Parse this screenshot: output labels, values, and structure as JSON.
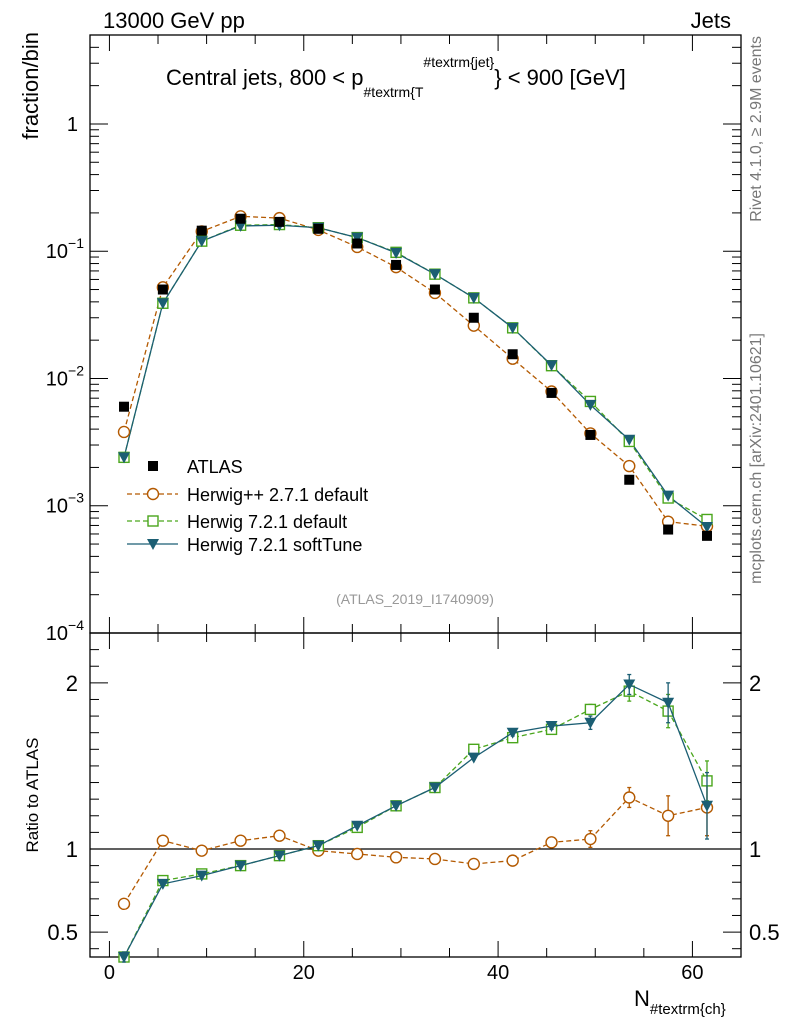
{
  "header": {
    "left": "13000 GeV pp",
    "right": "Jets"
  },
  "side_labels": {
    "rivet": "Rivet 4.1.0, ≥ 2.9M events",
    "mcplots": "mcplots.cern.ch [arXiv:2401.10621]"
  },
  "legend": [
    {
      "name": "ATLAS"
    },
    {
      "name": "Herwig++ 2.7.1 default"
    },
    {
      "name": "Herwig 7.2.1 default"
    },
    {
      "name": "Herwig 7.2.1 softTune"
    }
  ],
  "colors": {
    "atlas": "#000000",
    "herwigpp": "#b35900",
    "h721default": "#4aa61c",
    "h721soft": "#1b5e73",
    "watermark": "#999999"
  },
  "chart_data": [
    {
      "type": "scatter",
      "panel": "main",
      "title": "Central jets, 800 < p",
      "title_sub": "#textrm{T",
      "title_sup": "#textrm{jet}",
      "title_tail": "} < 900 [GeV]",
      "watermark": "(ATLAS_2019_I1740909)",
      "ylabel": "fraction/bin",
      "yscale": "log",
      "ylim": [
        0.0001,
        5
      ],
      "xlim": [
        -2,
        65
      ],
      "y_ticks": [
        {
          "value": 1,
          "label": "1"
        },
        {
          "value": 0.1,
          "label": "10",
          "exp": "−1"
        },
        {
          "value": 0.01,
          "label": "10",
          "exp": "−2"
        },
        {
          "value": 0.001,
          "label": "10",
          "exp": "−3"
        },
        {
          "value": 0.0001,
          "label": "10",
          "exp": "−4"
        }
      ],
      "x": [
        1.5,
        5.5,
        9.5,
        13.5,
        17.5,
        21.5,
        25.5,
        29.5,
        33.5,
        37.5,
        41.5,
        45.5,
        49.5,
        53.5,
        57.5,
        61.5
      ],
      "series": [
        {
          "name": "ATLAS",
          "values": [
            0.006,
            0.05,
            0.145,
            0.18,
            0.17,
            0.15,
            0.115,
            0.078,
            0.05,
            0.03,
            0.0155,
            0.0077,
            0.0036,
            0.0016,
            0.00065,
            0.00058
          ]
        },
        {
          "name": "Herwig++ 2.7.1 default",
          "values": [
            0.0038,
            0.052,
            0.143,
            0.188,
            0.182,
            0.147,
            0.108,
            0.075,
            0.047,
            0.026,
            0.0143,
            0.0079,
            0.0037,
            0.00205,
            0.00075,
            0.00069
          ]
        },
        {
          "name": "Herwig 7.2.1 default",
          "values": [
            0.0024,
            0.039,
            0.12,
            0.16,
            0.162,
            0.153,
            0.128,
            0.098,
            0.066,
            0.043,
            0.025,
            0.0126,
            0.0066,
            0.0032,
            0.00115,
            0.00078
          ]
        },
        {
          "name": "Herwig 7.2.1 softTune",
          "values": [
            0.0024,
            0.039,
            0.12,
            0.158,
            0.16,
            0.153,
            0.128,
            0.097,
            0.066,
            0.043,
            0.025,
            0.0127,
            0.0062,
            0.0033,
            0.0012,
            0.00068
          ]
        }
      ]
    },
    {
      "type": "line",
      "panel": "ratio",
      "ylabel": "Ratio to ATLAS",
      "xlabel": "N",
      "xlabel_sub": "#textrm{ch}",
      "ylim": [
        0.35,
        2.3
      ],
      "xlim": [
        -2,
        65
      ],
      "reference": 1,
      "y_ticks": [
        {
          "value": 0.5,
          "label": "0.5"
        },
        {
          "value": 1,
          "label": "1"
        },
        {
          "value": 2,
          "label": "2"
        }
      ],
      "x_ticks": [
        {
          "value": 0,
          "label": "0"
        },
        {
          "value": 20,
          "label": "20"
        },
        {
          "value": 40,
          "label": "40"
        },
        {
          "value": 60,
          "label": "60"
        }
      ],
      "x": [
        1.5,
        5.5,
        9.5,
        13.5,
        17.5,
        21.5,
        25.5,
        29.5,
        33.5,
        37.5,
        41.5,
        45.5,
        49.5,
        53.5,
        57.5,
        61.5
      ],
      "series": [
        {
          "name": "Herwig++ 2.7.1 default",
          "values": [
            0.67,
            1.05,
            0.99,
            1.05,
            1.08,
            0.99,
            0.97,
            0.95,
            0.94,
            0.91,
            0.93,
            1.04,
            1.06,
            1.31,
            1.2,
            1.25
          ],
          "errors": [
            0.03,
            0.01,
            0.01,
            0.01,
            0.01,
            0.01,
            0.01,
            0.01,
            0.01,
            0.01,
            0.01,
            0.03,
            0.05,
            0.06,
            0.12,
            0.17
          ]
        },
        {
          "name": "Herwig 7.2.1 default",
          "values": [
            0.35,
            0.81,
            0.85,
            0.9,
            0.96,
            1.02,
            1.13,
            1.26,
            1.37,
            1.6,
            1.67,
            1.72,
            1.84,
            1.95,
            1.83,
            1.41
          ],
          "errors": [
            0.02,
            0.01,
            0.01,
            0.01,
            0.01,
            0.01,
            0.01,
            0.01,
            0.01,
            0.01,
            0.02,
            0.02,
            0.03,
            0.06,
            0.1,
            0.12
          ]
        },
        {
          "name": "Herwig 7.2.1 softTune",
          "values": [
            0.35,
            0.79,
            0.84,
            0.9,
            0.96,
            1.02,
            1.14,
            1.26,
            1.37,
            1.55,
            1.7,
            1.74,
            1.76,
            1.99,
            1.88,
            1.26
          ],
          "errors": [
            0.03,
            0.01,
            0.01,
            0.01,
            0.01,
            0.01,
            0.01,
            0.01,
            0.01,
            0.01,
            0.02,
            0.02,
            0.04,
            0.06,
            0.12,
            0.2
          ]
        }
      ]
    }
  ]
}
